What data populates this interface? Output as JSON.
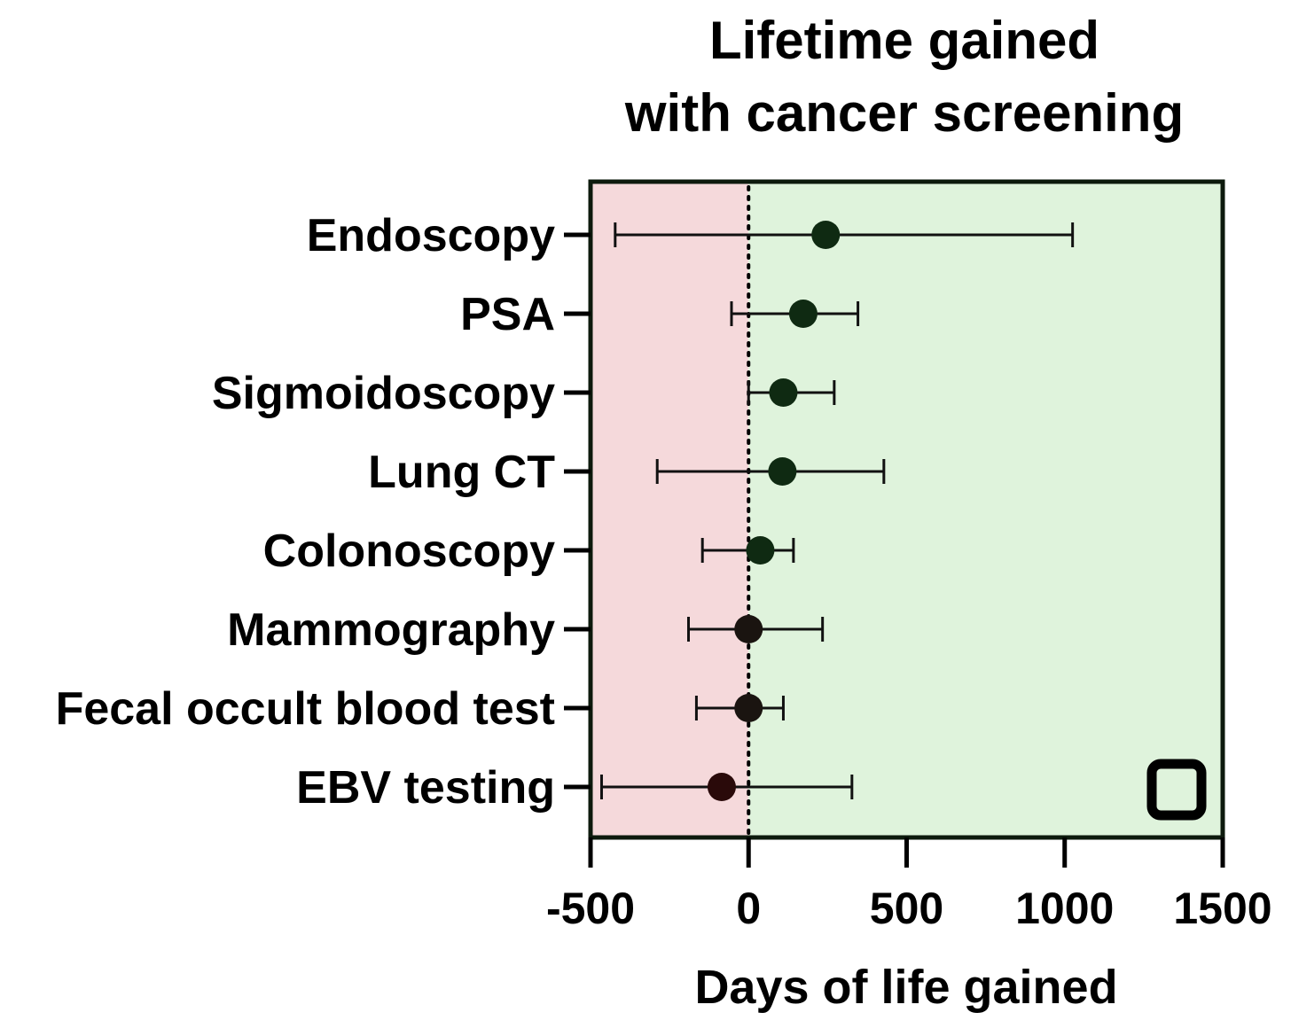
{
  "chart_data": {
    "type": "forest",
    "title_lines": [
      "Lifetime gained",
      "with cancer screening"
    ],
    "xlabel": "Days of life gained",
    "xlim": [
      -500,
      1500
    ],
    "xticks": [
      -500,
      0,
      500,
      1000,
      1500
    ],
    "xtick_labels": [
      "-500",
      "0",
      "500",
      "1000",
      "1500"
    ],
    "reference_line": 0,
    "categories": [
      "Endoscopy",
      "PSA",
      "Sigmoidoscopy",
      "Lung CT",
      "Colonoscopy",
      "Mammography",
      "Fecal occult blood test",
      "EBV testing"
    ],
    "estimates": [
      244,
      173,
      110,
      107,
      37,
      0,
      0,
      -85
    ],
    "ci_lower": [
      -422,
      -54,
      0,
      -289,
      -146,
      -190,
      -165,
      -465
    ],
    "ci_upper": [
      1025,
      346,
      271,
      428,
      142,
      234,
      110,
      327
    ],
    "regions": {
      "negative_color": "#f5d9db",
      "positive_color": "#dff3dc"
    },
    "marker_color_positive": "#0f2a12",
    "marker_color_negative": "#2a0a0a",
    "frame_color": "#0d1a0d"
  }
}
